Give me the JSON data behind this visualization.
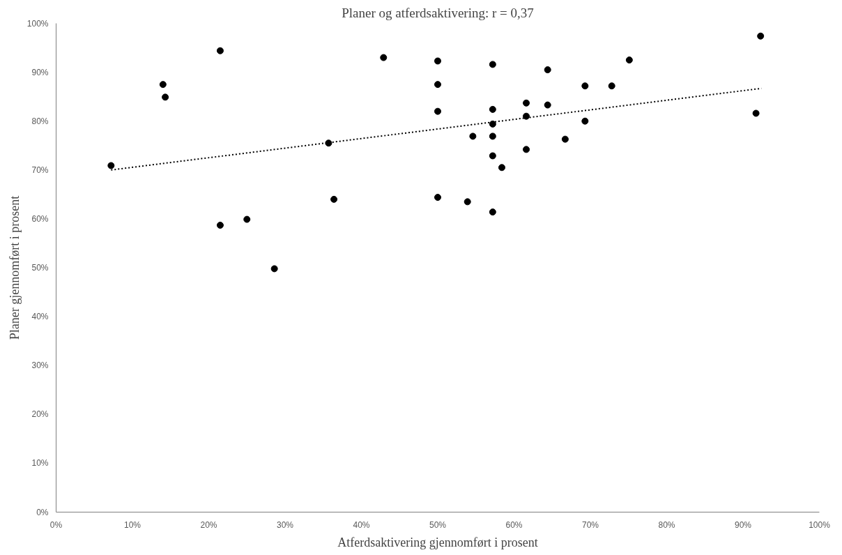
{
  "chart_data": {
    "type": "scatter",
    "title": "Planer og atferdsaktivering: r = 0,37",
    "xlabel": "Atferdsaktivering gjennomført i prosent",
    "ylabel": "Planer gjennomført i prosent",
    "series": [
      {
        "color": "#000000",
        "marker": "circle",
        "x": [
          7.2,
          14.0,
          14.3,
          21.5,
          21.5,
          25.0,
          28.6,
          35.7,
          36.4,
          42.9,
          50.0,
          50.0,
          50.0,
          50.0,
          53.9,
          54.6,
          57.2,
          57.2,
          57.2,
          57.2,
          57.2,
          57.2,
          58.4,
          61.6,
          61.6,
          61.6,
          64.4,
          64.4,
          66.7,
          69.3,
          69.3,
          72.8,
          75.1,
          91.7,
          92.3
        ],
        "values": [
          70.9,
          87.5,
          84.9,
          94.4,
          58.7,
          59.9,
          49.8,
          75.5,
          64.0,
          93.0,
          92.3,
          87.5,
          82.0,
          64.4,
          63.5,
          76.9,
          91.6,
          82.4,
          79.4,
          76.9,
          72.9,
          61.4,
          70.5,
          83.7,
          81.0,
          74.2,
          90.5,
          83.3,
          76.3,
          87.2,
          80.0,
          87.2,
          92.5,
          81.6,
          97.4
        ]
      },
      {
        "type": "line",
        "color": "#000000",
        "line_style": "dotted",
        "marker": "none",
        "x": [
          7.2,
          92.4
        ],
        "values": [
          70.0,
          86.7
        ]
      }
    ],
    "xlim": [
      0,
      100
    ],
    "ylim": [
      0,
      100
    ],
    "xticks": [
      {
        "value": 0,
        "label": "0%"
      },
      {
        "value": 10,
        "label": "10%"
      },
      {
        "value": 20,
        "label": "20%"
      },
      {
        "value": 30,
        "label": "30%"
      },
      {
        "value": 40,
        "label": "40%"
      },
      {
        "value": 50,
        "label": "50%"
      },
      {
        "value": 60,
        "label": "60%"
      },
      {
        "value": 70,
        "label": "70%"
      },
      {
        "value": 80,
        "label": "80%"
      },
      {
        "value": 90,
        "label": "90%"
      },
      {
        "value": 100,
        "label": "100%"
      }
    ],
    "yticks": [
      {
        "value": 0,
        "label": "0%"
      },
      {
        "value": 10,
        "label": "10%"
      },
      {
        "value": 20,
        "label": "20%"
      },
      {
        "value": 30,
        "label": "30%"
      },
      {
        "value": 40,
        "label": "40%"
      },
      {
        "value": 50,
        "label": "50%"
      },
      {
        "value": 60,
        "label": "60%"
      },
      {
        "value": 70,
        "label": "70%"
      },
      {
        "value": 80,
        "label": "80%"
      },
      {
        "value": 90,
        "label": "90%"
      },
      {
        "value": 100,
        "label": "100%"
      }
    ],
    "grid": false
  }
}
